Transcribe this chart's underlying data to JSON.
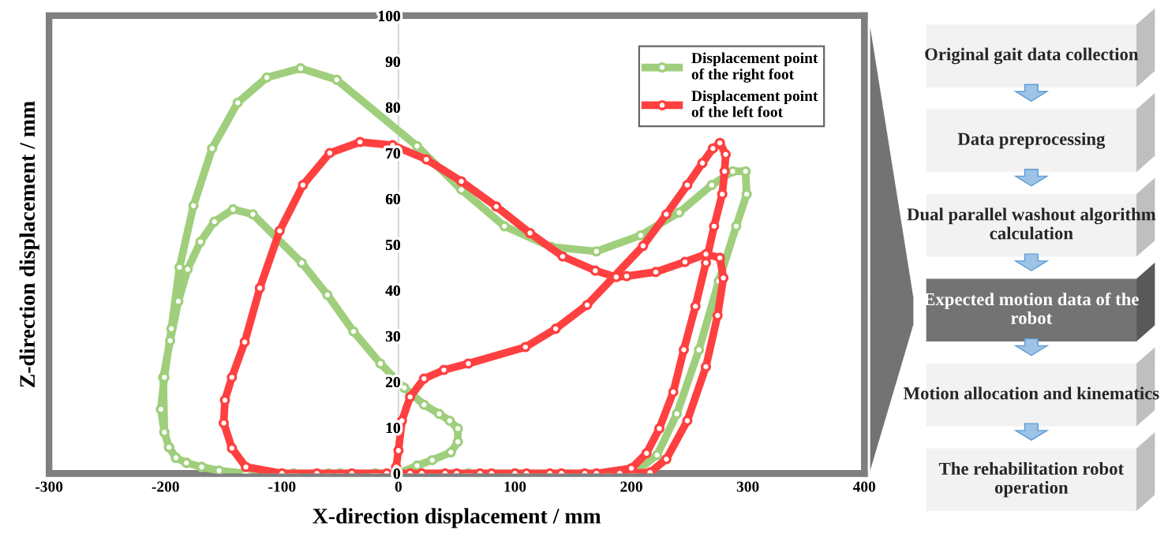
{
  "chart_data": [
    {
      "type": "line",
      "xlabel": "X-direction displacement / mm",
      "ylabel": "Z-direction displacement / mm",
      "xlim": [
        -300,
        400
      ],
      "ylim": [
        0,
        100
      ],
      "xticks": [
        -300,
        -200,
        -100,
        0,
        100,
        200,
        300,
        400
      ],
      "yticks": [
        0,
        10,
        20,
        30,
        40,
        50,
        60,
        70,
        80,
        90,
        100
      ],
      "legend": "top right",
      "marker": "circle",
      "grid": false,
      "series": [
        {
          "name": "Displacement point of the right foot",
          "color": "#9fcf7c",
          "x": [
            0,
            16,
            29,
            45,
            51,
            51,
            44,
            35,
            22,
            5,
            -15.5,
            -38.6,
            -61,
            -83,
            -125,
            -142,
            -158,
            -170,
            -181,
            -189,
            -196,
            -202,
            -201,
            -197,
            -191,
            -182,
            -169,
            -154,
            -131,
            -100,
            -60,
            -20,
            20,
            60,
            100,
            140,
            180,
            202,
            222,
            239,
            258,
            275,
            290,
            299,
            298,
            287,
            269,
            241,
            208,
            170,
            131,
            91,
            54,
            16,
            -53,
            -84,
            -113,
            -138,
            -160,
            -176,
            -188,
            -195,
            -201,
            -204,
            -201,
            -197,
            -191,
            -182,
            -169,
            -154,
            -131,
            -90,
            -50,
            -20
          ],
          "values": [
            0,
            1.7,
            2.9,
            4.6,
            6.9,
            9.8,
            11.5,
            13,
            15,
            18.7,
            24,
            31,
            39,
            46,
            56.6,
            57.7,
            55,
            50.6,
            44.6,
            37.6,
            29,
            21,
            9,
            5.7,
            3.4,
            2.3,
            1.4,
            0.6,
            0,
            0,
            0,
            0,
            0,
            0,
            0,
            0,
            0,
            0,
            4,
            13,
            27,
            42,
            54,
            61,
            66,
            66,
            63,
            57,
            52,
            48.5,
            49.5,
            54,
            62,
            71.5,
            86,
            88.5,
            86.5,
            81,
            71,
            58.5,
            45,
            31.6,
            21,
            14,
            9,
            5.7,
            3.4,
            2.3,
            1.4,
            0.6,
            0,
            0,
            0,
            0
          ]
        },
        {
          "name": "Displacement point of the left foot",
          "color": "#ff4040",
          "x": [
            -2,
            0,
            3,
            10,
            22,
            39,
            60,
            109,
            135,
            162,
            210,
            230,
            248,
            261,
            270,
            276,
            281,
            280,
            278,
            271,
            264,
            255,
            245,
            236,
            224,
            213,
            200,
            170,
            140,
            110,
            80,
            50,
            20,
            -10,
            -40,
            -70,
            -100,
            -131,
            -143,
            -150,
            -149,
            -143,
            -132,
            -119,
            -102,
            -82,
            -59,
            -33,
            -5,
            24,
            54,
            84,
            113,
            141,
            169,
            187,
            196,
            221,
            246,
            264,
            276,
            279,
            274,
            264,
            248,
            230,
            216,
            190,
            160,
            130,
            100,
            70,
            40,
            10,
            0
          ],
          "values": [
            1.4,
            5,
            11.5,
            16.7,
            20.7,
            22.6,
            24,
            27.6,
            31.6,
            36.8,
            49.7,
            56.6,
            63,
            67.8,
            71,
            72.2,
            69.7,
            66,
            61,
            54,
            46,
            36.5,
            27,
            17.8,
            9.8,
            4.4,
            1.1,
            0,
            0,
            0,
            0,
            0,
            0,
            0,
            0,
            0,
            0,
            1.4,
            5.5,
            11,
            16,
            21,
            28.7,
            40.5,
            53,
            63,
            70,
            72.4,
            71.7,
            68.6,
            63.8,
            58.3,
            52.5,
            47.4,
            44.3,
            42.9,
            43.1,
            44,
            46.2,
            47.9,
            47.1,
            42.7,
            34.5,
            23.3,
            11.5,
            3.1,
            0.2,
            0,
            0,
            0,
            0,
            0,
            0,
            0,
            0
          ]
        }
      ]
    },
    {
      "type": "other",
      "categories": [
        "Original gait data collection",
        "Data preprocessing",
        "Dual parallel washout algorithm calculation",
        "Expected motion data of the robot",
        "Motion allocation and kinematics",
        "The rehabilitation robot operation"
      ],
      "colors": [
        "#f2f2f2",
        "#f2f2f2",
        "#f2f2f2",
        "#737373",
        "#f2f2f2",
        "#f2f2f2"
      ]
    }
  ]
}
